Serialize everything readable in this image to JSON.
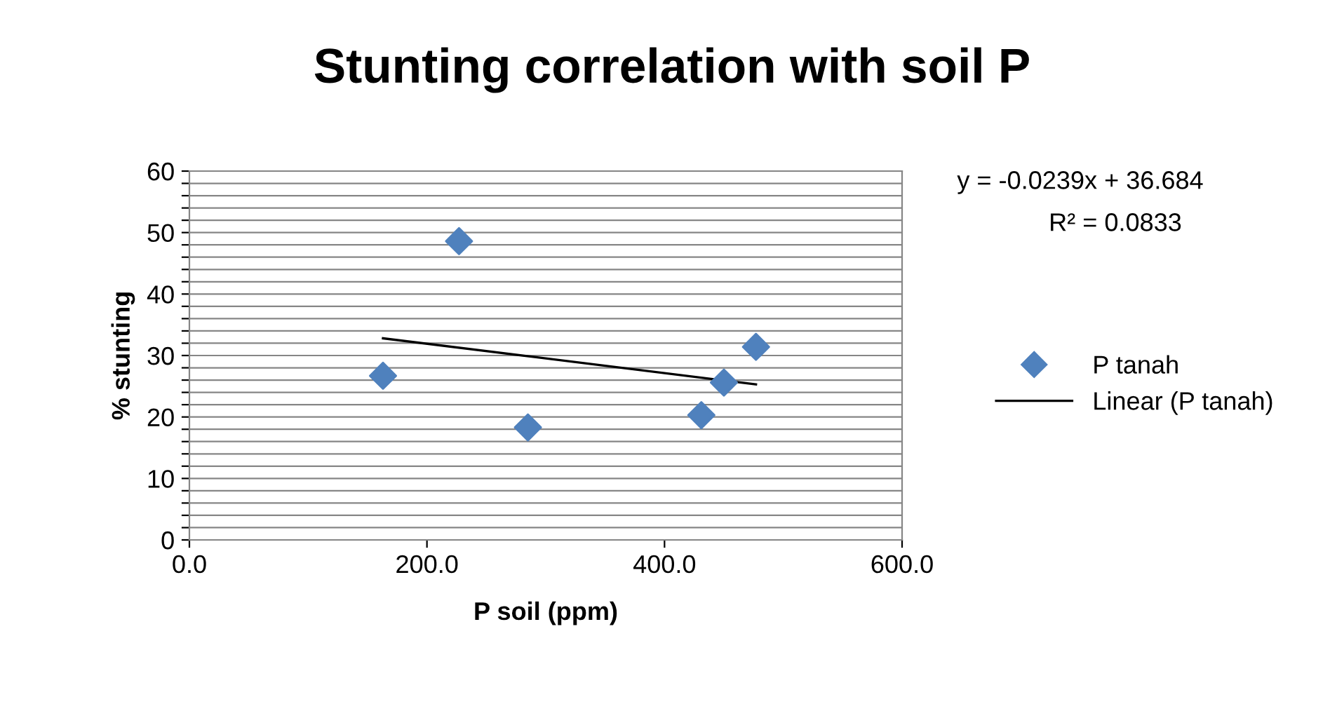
{
  "chart_data": {
    "type": "scatter",
    "title": "Stunting correlation with soil P",
    "xlabel": "P soil (ppm)",
    "ylabel": "% stunting",
    "annotations": [
      "y = -0.0239x + 36.684",
      "R² = 0.0833"
    ],
    "series": [
      {
        "name": "P tanah",
        "color": "#4f81bd",
        "marker": "diamond",
        "x": [
          163,
          227,
          285,
          431,
          450,
          477
        ],
        "values": [
          26.7,
          48.6,
          18.3,
          20.3,
          25.6,
          31.4
        ]
      },
      {
        "name": "Linear (P tanah)",
        "type": "line",
        "color": "#000000",
        "marker": "none",
        "line_style": "solid",
        "x": [
          163,
          477
        ],
        "values": [
          32.8,
          25.3
        ]
      }
    ],
    "xlim": [
      0,
      600
    ],
    "xticks": [
      {
        "value": 0,
        "label": "0.0"
      },
      {
        "value": 200,
        "label": "200.0"
      },
      {
        "value": 400,
        "label": "400.0"
      },
      {
        "value": 600,
        "label": "600.0"
      }
    ],
    "ylim": [
      0,
      60
    ],
    "yticks": [
      0,
      {
        "value": 2,
        "label": null
      },
      {
        "value": 4,
        "label": null
      },
      {
        "value": 6,
        "label": null
      },
      {
        "value": 8,
        "label": null
      },
      10,
      {
        "value": 12,
        "label": null
      },
      {
        "value": 14,
        "label": null
      },
      {
        "value": 16,
        "label": null
      },
      {
        "value": 18,
        "label": null
      },
      20,
      {
        "value": 22,
        "label": null
      },
      {
        "value": 24,
        "label": null
      },
      {
        "value": 26,
        "label": null
      },
      {
        "value": 28,
        "label": null
      },
      30,
      {
        "value": 32,
        "label": null
      },
      {
        "value": 34,
        "label": null
      },
      {
        "value": 36,
        "label": null
      },
      {
        "value": 38,
        "label": null
      },
      40,
      {
        "value": 42,
        "label": null
      },
      {
        "value": 44,
        "label": null
      },
      {
        "value": 46,
        "label": null
      },
      {
        "value": 48,
        "label": null
      },
      50,
      {
        "value": 52,
        "label": null
      },
      {
        "value": 54,
        "label": null
      },
      {
        "value": 56,
        "label": null
      },
      {
        "value": 58,
        "label": null
      },
      60
    ],
    "grid": "y",
    "legend": "right"
  }
}
